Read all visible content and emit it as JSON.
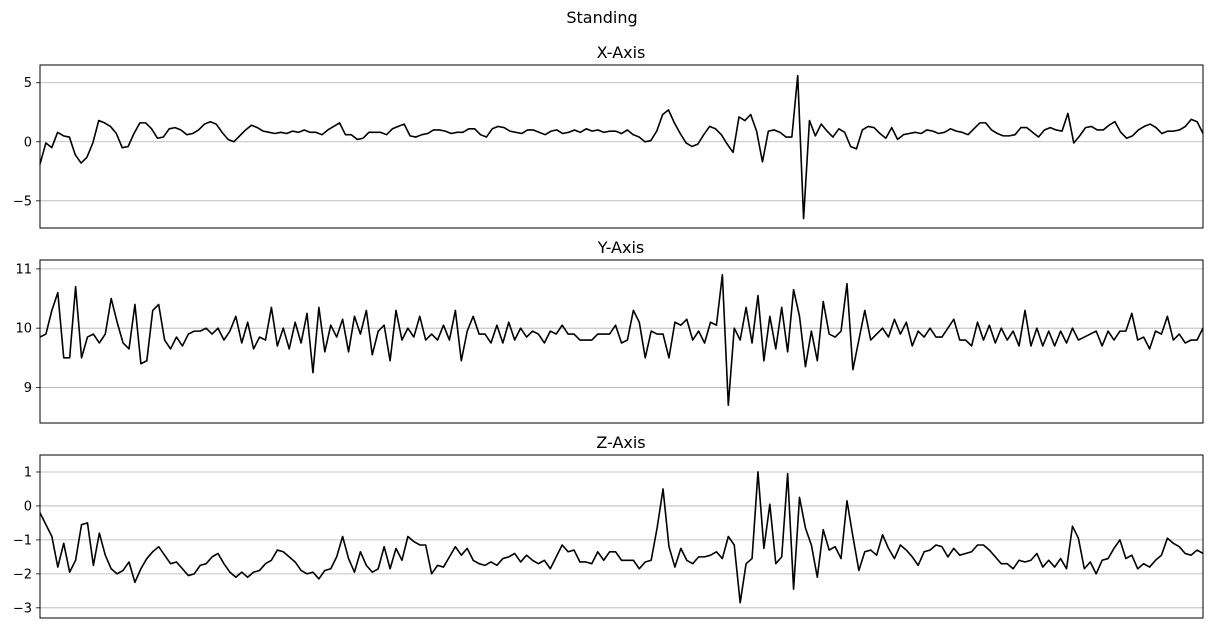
{
  "chart_data": {
    "suptitle": "Standing",
    "type": "line",
    "subplots": [
      {
        "title": "X-Axis",
        "ylim": [
          -7.3,
          6.5
        ],
        "yticks": [
          5,
          0,
          -5
        ],
        "ytick_labels": [
          "5",
          "0",
          "−5"
        ],
        "grid": true,
        "values": [
          -1.9,
          -0.1,
          -0.5,
          0.8,
          0.5,
          0.4,
          -1.1,
          -1.8,
          -1.3,
          -0.1,
          1.8,
          1.6,
          1.3,
          0.7,
          -0.5,
          -0.4,
          0.7,
          1.6,
          1.6,
          1.1,
          0.3,
          0.4,
          1.1,
          1.2,
          1.0,
          0.6,
          0.7,
          1.0,
          1.5,
          1.7,
          1.5,
          0.8,
          0.2,
          0.0,
          0.5,
          1.0,
          1.4,
          1.2,
          0.9,
          0.8,
          0.7,
          0.8,
          0.7,
          0.9,
          0.8,
          1.0,
          0.8,
          0.8,
          0.6,
          1.0,
          1.3,
          1.6,
          0.6,
          0.6,
          0.2,
          0.3,
          0.8,
          0.8,
          0.8,
          0.6,
          1.1,
          1.3,
          1.5,
          0.5,
          0.4,
          0.6,
          0.7,
          1.0,
          1.0,
          0.9,
          0.7,
          0.8,
          0.8,
          1.1,
          1.1,
          0.6,
          0.4,
          1.1,
          1.3,
          1.2,
          0.9,
          0.8,
          0.7,
          1.0,
          1.0,
          0.8,
          0.6,
          0.9,
          1.0,
          0.7,
          0.8,
          1.0,
          0.8,
          1.1,
          0.9,
          1.0,
          0.8,
          0.9,
          0.9,
          0.7,
          1.0,
          0.6,
          0.4,
          0.0,
          0.1,
          0.9,
          2.3,
          2.7,
          1.6,
          0.7,
          -0.1,
          -0.4,
          -0.2,
          0.6,
          1.3,
          1.1,
          0.6,
          -0.2,
          -0.9,
          2.1,
          1.8,
          2.3,
          0.9,
          -1.7,
          0.9,
          1.0,
          0.8,
          0.4,
          0.4,
          5.6,
          -6.5,
          1.8,
          0.5,
          1.5,
          0.9,
          0.4,
          1.1,
          0.8,
          -0.4,
          -0.6,
          1.0,
          1.3,
          1.2,
          0.7,
          0.3,
          1.2,
          0.2,
          0.6,
          0.7,
          0.8,
          0.7,
          1.0,
          0.9,
          0.7,
          0.8,
          1.1,
          0.9,
          0.8,
          0.6,
          1.1,
          1.6,
          1.6,
          1.0,
          0.7,
          0.5,
          0.5,
          0.6,
          1.2,
          1.2,
          0.8,
          0.4,
          1.0,
          1.2,
          1.0,
          0.9,
          2.4,
          -0.1,
          0.5,
          1.2,
          1.3,
          1.0,
          1.0,
          1.4,
          1.7,
          0.8,
          0.3,
          0.5,
          1.0,
          1.3,
          1.5,
          1.2,
          0.7,
          0.9,
          0.9,
          1.0,
          1.3,
          1.9,
          1.7,
          0.7
        ]
      },
      {
        "title": "Y-Axis",
        "ylim": [
          8.4,
          11.15
        ],
        "yticks": [
          11,
          10,
          9
        ],
        "ytick_labels": [
          "11",
          "10",
          "9"
        ],
        "grid": true,
        "values": [
          9.85,
          9.9,
          10.3,
          10.6,
          9.5,
          9.5,
          10.7,
          9.5,
          9.85,
          9.9,
          9.75,
          9.9,
          10.5,
          10.1,
          9.75,
          9.65,
          10.4,
          9.4,
          9.45,
          10.3,
          10.4,
          9.8,
          9.65,
          9.85,
          9.7,
          9.9,
          9.95,
          9.95,
          10.0,
          9.9,
          10.0,
          9.8,
          9.95,
          10.2,
          9.75,
          10.1,
          9.65,
          9.85,
          9.8,
          10.35,
          9.7,
          10.0,
          9.65,
          10.1,
          9.75,
          10.25,
          9.25,
          10.35,
          9.6,
          10.05,
          9.85,
          10.15,
          9.6,
          10.2,
          9.9,
          10.3,
          9.55,
          9.95,
          10.05,
          9.45,
          10.3,
          9.8,
          10.0,
          9.85,
          10.2,
          9.8,
          9.9,
          9.8,
          10.05,
          9.8,
          10.3,
          9.45,
          9.95,
          10.2,
          9.9,
          9.9,
          9.75,
          10.05,
          9.75,
          10.1,
          9.8,
          10.0,
          9.85,
          9.95,
          9.9,
          9.75,
          9.95,
          9.9,
          10.05,
          9.9,
          9.9,
          9.8,
          9.8,
          9.8,
          9.9,
          9.9,
          9.9,
          10.05,
          9.75,
          9.8,
          10.3,
          10.1,
          9.5,
          9.95,
          9.9,
          9.9,
          9.5,
          10.1,
          10.05,
          10.15,
          9.8,
          9.95,
          9.75,
          10.1,
          10.05,
          10.9,
          8.7,
          10.0,
          9.8,
          10.35,
          9.75,
          10.55,
          9.45,
          10.2,
          9.65,
          10.35,
          9.6,
          10.65,
          10.2,
          9.35,
          9.95,
          9.45,
          10.45,
          9.9,
          9.85,
          9.95,
          10.75,
          9.3,
          9.8,
          10.3,
          9.8,
          9.9,
          10.0,
          9.85,
          10.15,
          9.9,
          10.1,
          9.7,
          9.95,
          9.85,
          10.0,
          9.85,
          9.85,
          10.0,
          10.15,
          9.8,
          9.8,
          9.7,
          10.1,
          9.8,
          10.05,
          9.75,
          10.0,
          9.8,
          9.95,
          9.7,
          10.3,
          9.7,
          10.0,
          9.7,
          9.95,
          9.7,
          9.95,
          9.75,
          10.0,
          9.8,
          9.85,
          9.9,
          9.95,
          9.7,
          9.95,
          9.8,
          9.95,
          9.95,
          10.25,
          9.8,
          9.85,
          9.65,
          9.95,
          9.9,
          10.2,
          9.8,
          9.9,
          9.75,
          9.8,
          9.8,
          10.0
        ]
      },
      {
        "title": "Z-Axis",
        "ylim": [
          -3.3,
          1.5
        ],
        "yticks": [
          1,
          0,
          -1,
          -2,
          -3
        ],
        "ytick_labels": [
          "1",
          "0",
          "−1",
          "−2",
          "−3"
        ],
        "grid": true,
        "values": [
          -0.2,
          -0.55,
          -0.9,
          -1.8,
          -1.1,
          -1.95,
          -1.6,
          -0.55,
          -0.5,
          -1.75,
          -0.8,
          -1.45,
          -1.85,
          -2.0,
          -1.9,
          -1.65,
          -2.25,
          -1.85,
          -1.55,
          -1.35,
          -1.2,
          -1.45,
          -1.7,
          -1.65,
          -1.85,
          -2.05,
          -2.0,
          -1.75,
          -1.7,
          -1.5,
          -1.4,
          -1.7,
          -1.95,
          -2.1,
          -1.95,
          -2.1,
          -1.95,
          -1.9,
          -1.7,
          -1.6,
          -1.3,
          -1.35,
          -1.5,
          -1.65,
          -1.9,
          -2.0,
          -1.95,
          -2.15,
          -1.9,
          -1.85,
          -1.5,
          -0.9,
          -1.55,
          -1.95,
          -1.35,
          -1.75,
          -1.95,
          -1.85,
          -1.2,
          -1.85,
          -1.25,
          -1.6,
          -0.9,
          -1.05,
          -1.15,
          -1.15,
          -2.0,
          -1.75,
          -1.8,
          -1.5,
          -1.2,
          -1.45,
          -1.25,
          -1.6,
          -1.7,
          -1.75,
          -1.65,
          -1.75,
          -1.55,
          -1.5,
          -1.4,
          -1.65,
          -1.45,
          -1.6,
          -1.7,
          -1.6,
          -1.85,
          -1.5,
          -1.15,
          -1.35,
          -1.3,
          -1.65,
          -1.65,
          -1.7,
          -1.35,
          -1.6,
          -1.35,
          -1.35,
          -1.6,
          -1.6,
          -1.6,
          -1.85,
          -1.65,
          -1.6,
          -0.65,
          0.5,
          -1.2,
          -1.8,
          -1.25,
          -1.6,
          -1.7,
          -1.5,
          -1.5,
          -1.45,
          -1.35,
          -1.55,
          -0.9,
          -1.15,
          -2.85,
          -1.7,
          -1.55,
          1.0,
          -1.25,
          0.05,
          -1.7,
          -1.5,
          0.95,
          -2.45,
          0.25,
          -0.65,
          -1.15,
          -2.1,
          -0.7,
          -1.3,
          -1.2,
          -1.55,
          0.15,
          -0.9,
          -1.9,
          -1.35,
          -1.3,
          -1.45,
          -0.85,
          -1.25,
          -1.55,
          -1.15,
          -1.3,
          -1.5,
          -1.75,
          -1.35,
          -1.3,
          -1.15,
          -1.2,
          -1.5,
          -1.25,
          -1.45,
          -1.4,
          -1.35,
          -1.15,
          -1.15,
          -1.3,
          -1.5,
          -1.7,
          -1.7,
          -1.85,
          -1.6,
          -1.65,
          -1.6,
          -1.4,
          -1.8,
          -1.6,
          -1.8,
          -1.55,
          -1.85,
          -0.6,
          -0.95,
          -1.85,
          -1.65,
          -2.0,
          -1.6,
          -1.55,
          -1.25,
          -1.0,
          -1.55,
          -1.45,
          -1.85,
          -1.7,
          -1.8,
          -1.6,
          -1.45,
          -0.95,
          -1.1,
          -1.2,
          -1.4,
          -1.45,
          -1.3,
          -1.4
        ]
      }
    ]
  }
}
